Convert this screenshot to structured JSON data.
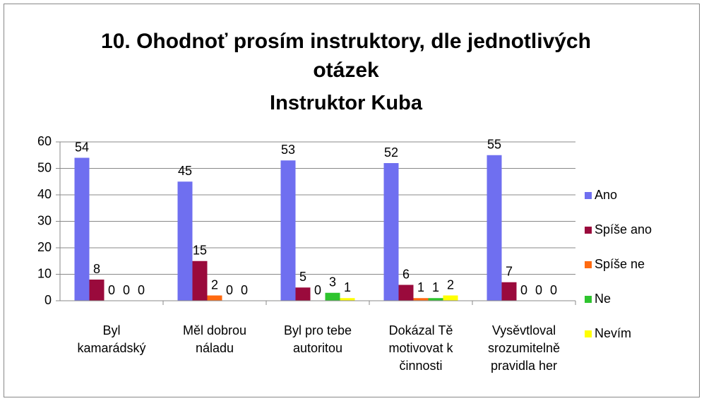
{
  "chart_data": {
    "type": "bar",
    "title": "10. Ohodnoť prosím instruktory, dle jednotlivých otázek",
    "subtitle": "Instruktor Kuba",
    "categories": [
      "Byl kamarádský",
      "Měl dobrou náladu",
      "Byl pro tebe autoritou",
      "Dokázal Tě motivovat k činnosti",
      "Vysěvtloval srozumitelně pravidla her"
    ],
    "series": [
      {
        "name": "Ano",
        "color": "#6f6ff0",
        "values": [
          54,
          45,
          53,
          52,
          55
        ]
      },
      {
        "name": "Spíše ano",
        "color": "#9a0a3c",
        "values": [
          8,
          15,
          5,
          6,
          7
        ]
      },
      {
        "name": "Spíše ne",
        "color": "#ff6a10",
        "values": [
          0,
          2,
          0,
          1,
          0
        ]
      },
      {
        "name": "Ne",
        "color": "#2ec42e",
        "values": [
          0,
          0,
          3,
          1,
          0
        ]
      },
      {
        "name": "Nevím",
        "color": "#ffff00",
        "values": [
          0,
          0,
          1,
          2,
          0
        ]
      }
    ],
    "ylim": [
      0,
      60
    ],
    "yticks": [
      0,
      10,
      20,
      30,
      40,
      50,
      60
    ],
    "grid": true,
    "legend": "right"
  }
}
